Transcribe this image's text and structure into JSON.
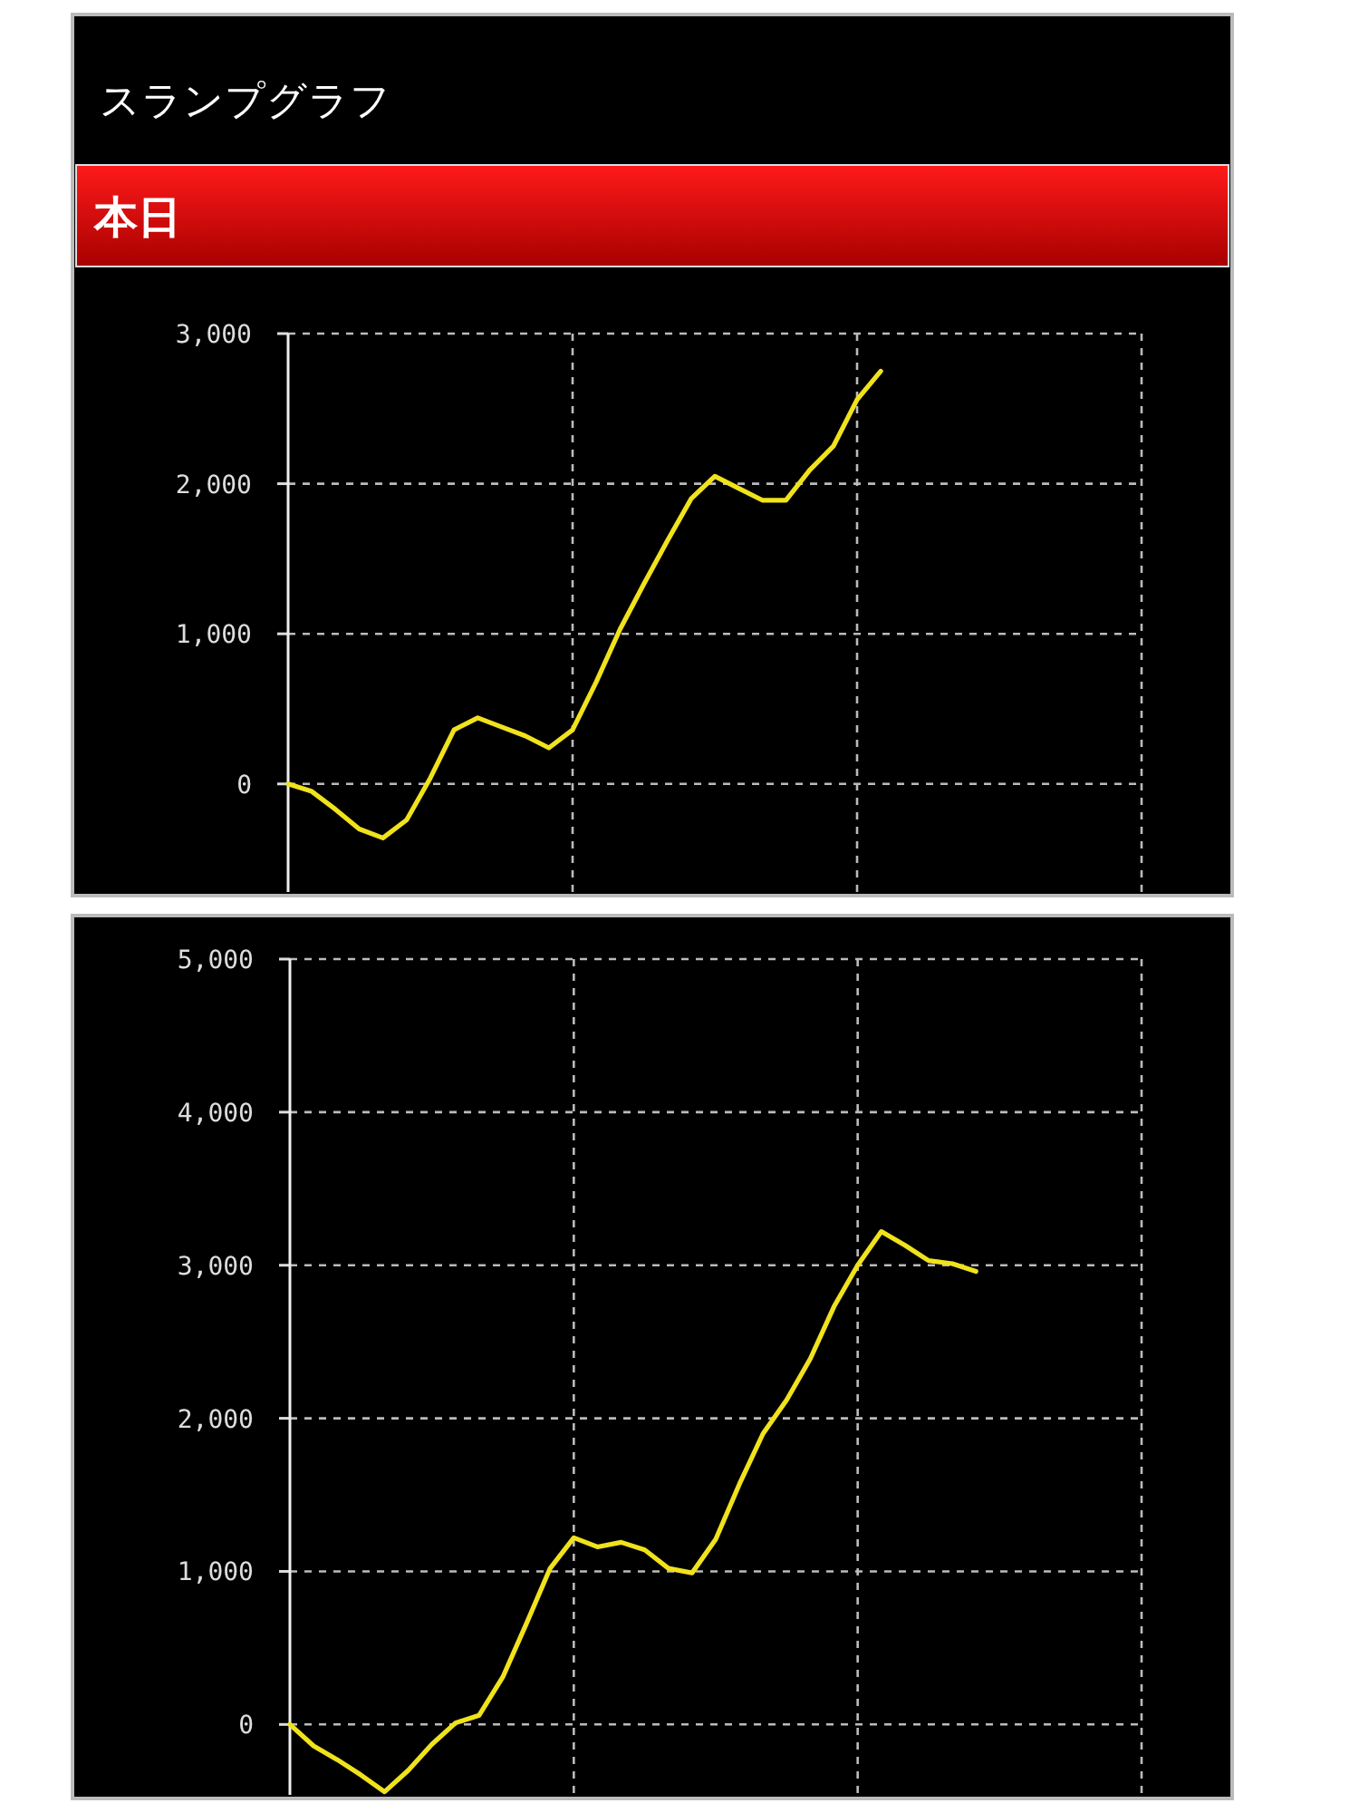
{
  "chart_data": [
    {
      "type": "line",
      "title": "スランプグラフ",
      "subtitle": "本日",
      "categories": [
        null,
        null,
        null,
        null,
        null,
        null,
        null,
        null,
        null,
        null,
        null,
        null,
        null,
        null,
        null,
        null,
        null,
        null,
        null,
        null,
        null,
        null,
        null,
        null,
        null,
        null,
        null,
        null,
        null,
        null,
        null,
        null,
        null,
        null,
        null,
        null,
        null
      ],
      "series": [
        {
          "color": "#f0e21c",
          "values": [
            0,
            -50,
            -170,
            -300,
            -360,
            -240,
            40,
            360,
            440,
            380,
            320,
            240,
            360,
            680,
            1030,
            1330,
            1620,
            1900,
            2050,
            1970,
            1890,
            1890,
            2090,
            2250,
            2560,
            2750,
            null,
            null,
            null,
            null,
            null,
            null,
            null,
            null,
            null,
            null,
            null
          ]
        }
      ],
      "ylim": [
        -720,
        3000
      ],
      "yticks": [
        {
          "value": 0,
          "label": "0"
        },
        {
          "value": 1000,
          "label": "1,000"
        },
        {
          "value": 2000,
          "label": "2,000"
        },
        {
          "value": 3000,
          "label": "3,000"
        }
      ],
      "grid": true,
      "tick_labels": "y"
    },
    {
      "type": "line",
      "categories": [
        null,
        null,
        null,
        null,
        null,
        null,
        null,
        null,
        null,
        null,
        null,
        null,
        null,
        null,
        null,
        null,
        null,
        null,
        null,
        null,
        null,
        null,
        null,
        null,
        null,
        null,
        null,
        null,
        null,
        null,
        null,
        null,
        null,
        null,
        null,
        null,
        null
      ],
      "series": [
        {
          "color": "#f0e21c",
          "values": [
            0,
            -140,
            -230,
            -330,
            -440,
            -300,
            -130,
            10,
            60,
            310,
            660,
            1020,
            1220,
            1160,
            1190,
            1140,
            1020,
            990,
            1210,
            1570,
            1900,
            2120,
            2390,
            2730,
            3000,
            3220,
            3130,
            3030,
            3010,
            2960,
            null,
            null,
            null,
            null,
            null,
            null,
            null
          ]
        }
      ],
      "ylim": [
        -460,
        5000
      ],
      "yticks": [
        {
          "value": 0,
          "label": "0"
        },
        {
          "value": 1000,
          "label": "1,000"
        },
        {
          "value": 2000,
          "label": "2,000"
        },
        {
          "value": 3000,
          "label": "3,000"
        },
        {
          "value": 4000,
          "label": "4,000"
        },
        {
          "value": 5000,
          "label": "5,000"
        }
      ],
      "grid": true,
      "tick_labels": "y"
    }
  ]
}
